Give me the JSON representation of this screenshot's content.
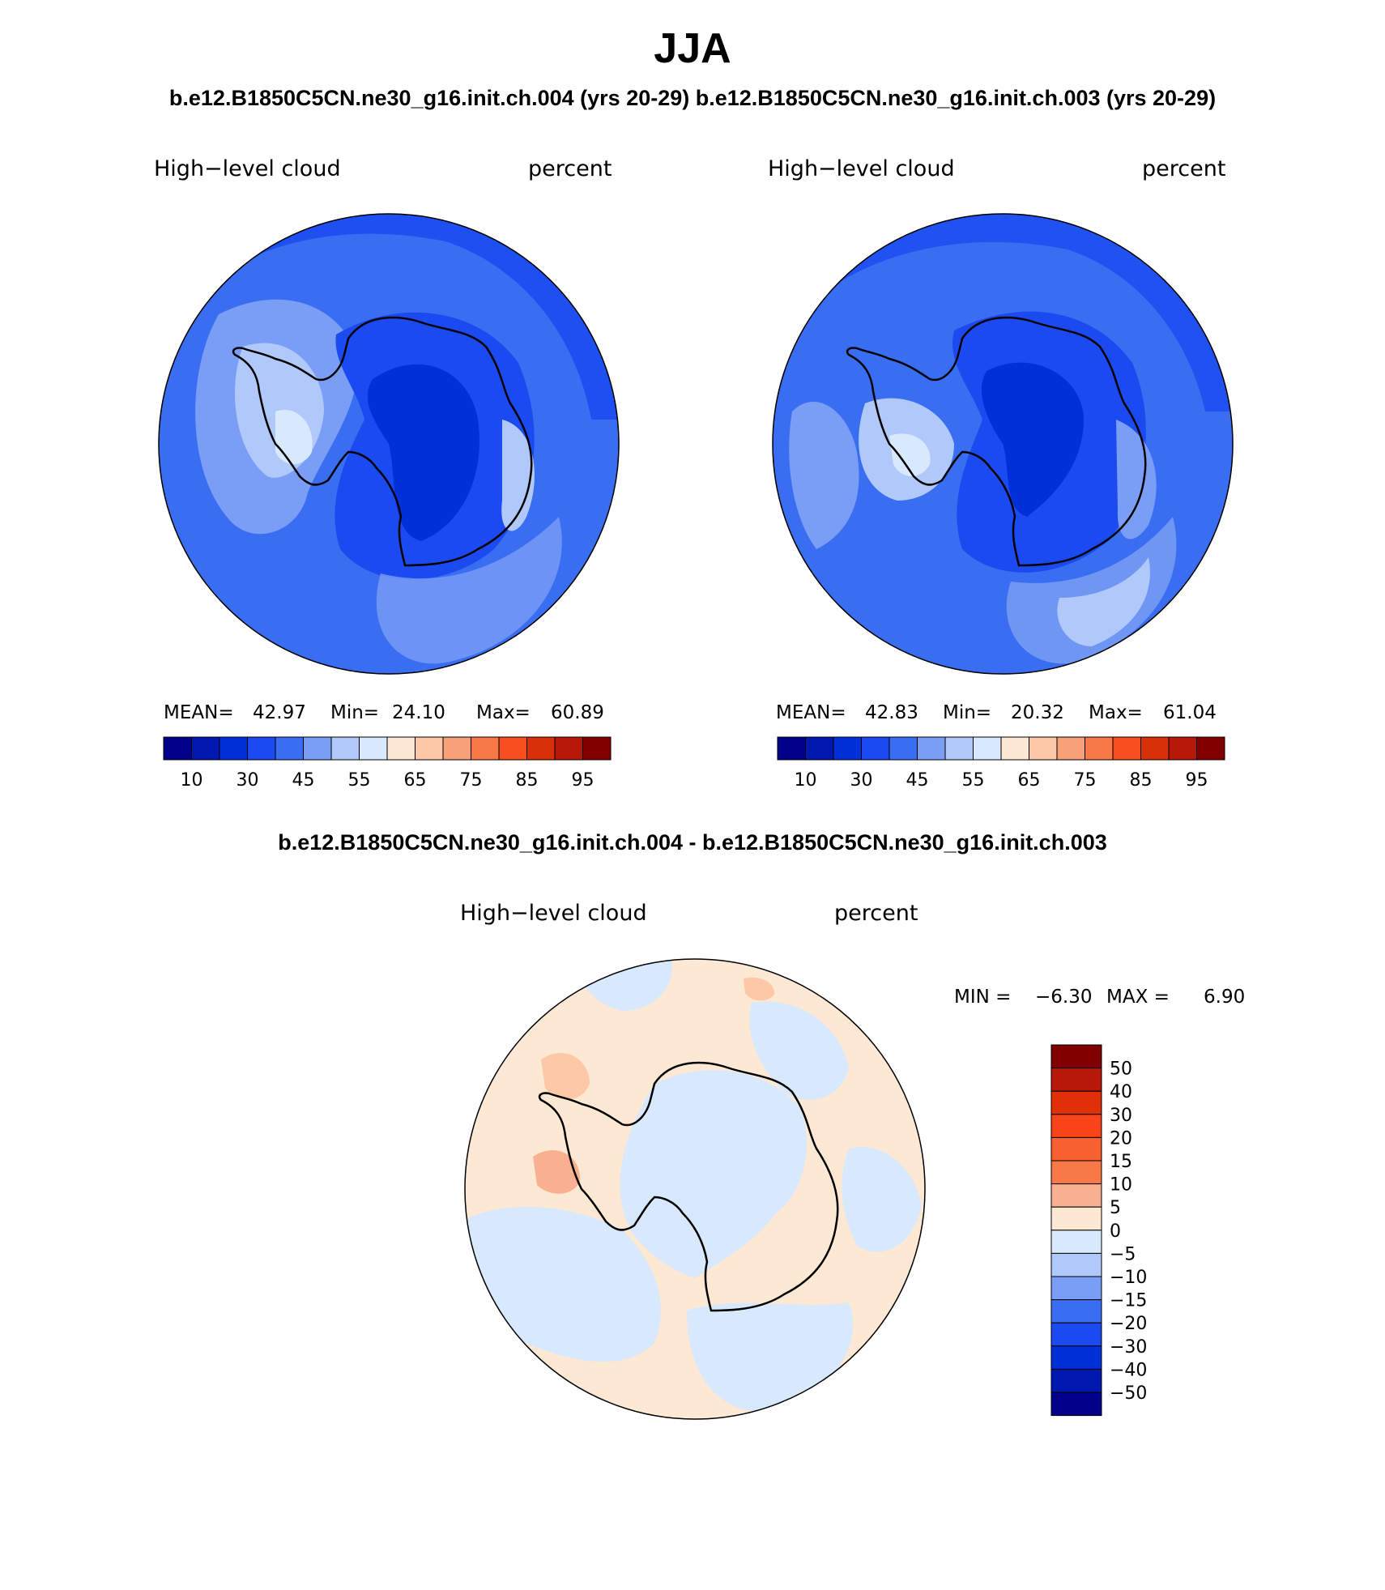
{
  "title": "JJA",
  "subtitle": "b.e12.B1850C5CN.ne30_g16.init.ch.004 (yrs 20-29) b.e12.B1850C5CN.ne30_g16.init.ch.003 (yrs 20-29)",
  "colors": {
    "abs_scale": [
      "#00008a",
      "#0018b0",
      "#0030d8",
      "#1a4af0",
      "#3a6ef2",
      "#7a9ef5",
      "#b0c8fa",
      "#d8e8fd",
      "#fde8d4",
      "#fcc8a8",
      "#f8a078",
      "#f87848",
      "#f84e20",
      "#d83008",
      "#b81808",
      "#800000"
    ],
    "diff_scale": [
      "#00008a",
      "#0018b0",
      "#0030d8",
      "#1a4af0",
      "#3a6ef2",
      "#7a9ef5",
      "#b0c8fa",
      "#d8e8fd",
      "#fde8d4",
      "#f8b090",
      "#f87848",
      "#f86030",
      "#f84418",
      "#e03008",
      "#b81808",
      "#800000"
    ]
  },
  "panels": [
    {
      "variable": "High−level cloud",
      "units": "percent",
      "mean_label": "MEAN=",
      "mean": "42.97",
      "min_label": "Min=",
      "min": "24.10",
      "max_label": "Max=",
      "max": "60.89",
      "colorbar_ticks": [
        "10",
        "30",
        "45",
        "55",
        "65",
        "75",
        "85",
        "95"
      ]
    },
    {
      "variable": "High−level cloud",
      "units": "percent",
      "mean_label": "MEAN=",
      "mean": "42.83",
      "min_label": "Min=",
      "min": "20.32",
      "max_label": "Max=",
      "max": "61.04",
      "colorbar_ticks": [
        "10",
        "30",
        "45",
        "55",
        "65",
        "75",
        "85",
        "95"
      ]
    }
  ],
  "difference": {
    "title": "b.e12.B1850C5CN.ne30_g16.init.ch.004 - b.e12.B1850C5CN.ne30_g16.init.ch.003",
    "variable": "High−level cloud",
    "units": "percent",
    "min_label": "MIN =",
    "min": "−6.30",
    "max_label": "MAX =",
    "max": "6.90",
    "colorbar_ticks": [
      "50",
      "40",
      "30",
      "20",
      "15",
      "10",
      "5",
      "0",
      "−5",
      "−10",
      "−15",
      "−20",
      "−30",
      "−40",
      "−50"
    ]
  }
}
